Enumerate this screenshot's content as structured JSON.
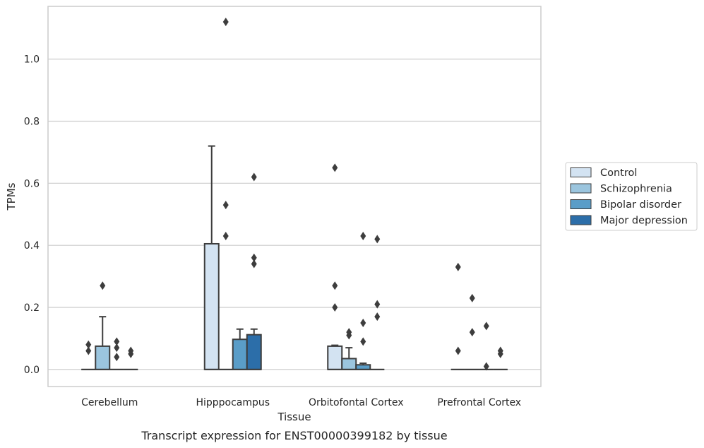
{
  "caption": "Transcript expression for ENST00000399182 by tissue",
  "chart_data": {
    "type": "box",
    "xlabel": "Tissue",
    "ylabel": "TPMs",
    "ylim": [
      -0.055,
      1.17
    ],
    "yticks": [
      "0.0",
      "0.2",
      "0.4",
      "0.6",
      "0.8",
      "1.0"
    ],
    "grid": "horizontal",
    "legend_position": "right",
    "categories": [
      "Cerebellum",
      "Hipppocampus",
      "Orbitofontal Cortex",
      "Prefrontal Cortex"
    ],
    "series": [
      {
        "name": "Control",
        "color": "#d3e3f2",
        "boxes": [
          {
            "q1": 0,
            "median": 0,
            "q3": 0,
            "whisker_low": 0,
            "whisker_high": 0,
            "outliers": [
              0.06,
              0.08
            ]
          },
          {
            "q1": 0,
            "median": 0,
            "q3": 0.405,
            "whisker_low": 0,
            "whisker_high": 0.72,
            "outliers": []
          },
          {
            "q1": 0,
            "median": 0,
            "q3": 0.075,
            "whisker_low": 0,
            "whisker_high": 0.078,
            "outliers": [
              0.2,
              0.27,
              0.65
            ]
          },
          {
            "q1": 0,
            "median": 0,
            "q3": 0,
            "whisker_low": 0,
            "whisker_high": 0,
            "outliers": [
              0.06,
              0.33
            ]
          }
        ]
      },
      {
        "name": "Schizophrenia",
        "color": "#9bc5de",
        "boxes": [
          {
            "q1": 0,
            "median": 0,
            "q3": 0.075,
            "whisker_low": 0,
            "whisker_high": 0.17,
            "outliers": [
              0.27
            ]
          },
          {
            "q1": 0,
            "median": 0,
            "q3": 0,
            "whisker_low": 0,
            "whisker_high": 0,
            "outliers": [
              0.43,
              0.53,
              1.12
            ]
          },
          {
            "q1": 0,
            "median": 0,
            "q3": 0.035,
            "whisker_low": 0,
            "whisker_high": 0.07,
            "outliers": [
              0.11,
              0.12
            ]
          },
          {
            "q1": 0,
            "median": 0,
            "q3": 0,
            "whisker_low": 0,
            "whisker_high": 0,
            "outliers": [
              0.12,
              0.23
            ]
          }
        ]
      },
      {
        "name": "Bipolar disorder",
        "color": "#5a9dc8",
        "boxes": [
          {
            "q1": 0,
            "median": 0,
            "q3": 0,
            "whisker_low": 0,
            "whisker_high": 0,
            "outliers": [
              0.04,
              0.07,
              0.09
            ]
          },
          {
            "q1": 0,
            "median": 0,
            "q3": 0.097,
            "whisker_low": 0,
            "whisker_high": 0.13,
            "outliers": []
          },
          {
            "q1": 0,
            "median": 0,
            "q3": 0.015,
            "whisker_low": 0,
            "whisker_high": 0.02,
            "outliers": [
              0.09,
              0.15,
              0.43
            ]
          },
          {
            "q1": 0,
            "median": 0,
            "q3": 0,
            "whisker_low": 0,
            "whisker_high": 0,
            "outliers": [
              0.01,
              0.14
            ]
          }
        ]
      },
      {
        "name": "Major depression",
        "color": "#2c6ea9",
        "boxes": [
          {
            "q1": 0,
            "median": 0,
            "q3": 0,
            "whisker_low": 0,
            "whisker_high": 0,
            "outliers": [
              0.05,
              0.06
            ]
          },
          {
            "q1": 0,
            "median": 0,
            "q3": 0.112,
            "whisker_low": 0,
            "whisker_high": 0.13,
            "outliers": [
              0.34,
              0.36,
              0.62
            ]
          },
          {
            "q1": 0,
            "median": 0,
            "q3": 0,
            "whisker_low": 0,
            "whisker_high": 0,
            "outliers": [
              0.17,
              0.21,
              0.42
            ]
          },
          {
            "q1": 0,
            "median": 0,
            "q3": 0,
            "whisker_low": 0,
            "whisker_high": 0,
            "outliers": [
              0.05,
              0.06
            ]
          }
        ]
      }
    ]
  }
}
